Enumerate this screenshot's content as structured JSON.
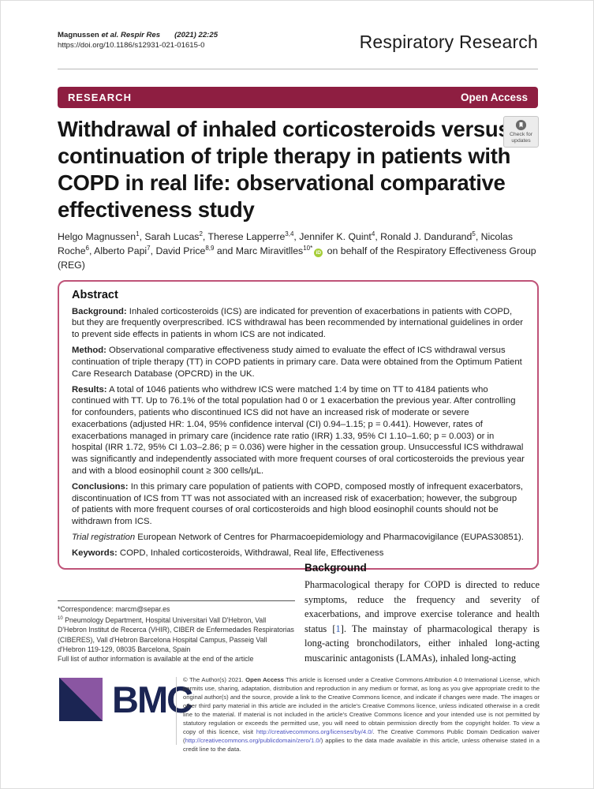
{
  "colors": {
    "banner": "#8e1e41",
    "abstract_border": "#bf5378",
    "link": "#2f5bb7",
    "footer_link": "#4a52c0",
    "orcid": "#a6ce39",
    "bmc_navy": "#1b2553",
    "bmc_purple": "#8a56a2"
  },
  "header": {
    "citation_name": "Magnussen ",
    "citation_journal": "et al. Respir Res",
    "citation_issue": "(2021) 22:25",
    "doi": "https://doi.org/10.1186/s12931-021-01615-0",
    "journal": "Respiratory Research"
  },
  "banner": {
    "section": "RESEARCH",
    "access": "Open Access"
  },
  "title": "Withdrawal of inhaled corticosteroids versus continuation of triple therapy in patients with COPD in real life: observational comparative effectiveness study",
  "update_badge": {
    "line1": "Check for",
    "line2": "updates"
  },
  "authors": {
    "segments": [
      {
        "text": "Helgo Magnussen",
        "sup": "1"
      },
      {
        "text": ", Sarah Lucas",
        "sup": "2"
      },
      {
        "text": ", Therese Lapperre",
        "sup": "3,4"
      },
      {
        "text": ", Jennifer K. Quint",
        "sup": "4"
      },
      {
        "text": ", Ronald J. Dandurand",
        "sup": "5"
      },
      {
        "text": ", Nicolas Roche",
        "sup": "6"
      },
      {
        "text": ", Alberto Papi",
        "sup": "7"
      },
      {
        "text": ", David Price",
        "sup": "8,9"
      },
      {
        "text": " and Marc Miravitlles",
        "sup": "10*",
        "orcid": true
      }
    ],
    "suffix": " on behalf of the Respiratory Effectiveness Group (REG)"
  },
  "abstract": {
    "heading": "Abstract",
    "sections": [
      {
        "label": "Background:",
        "text": "Inhaled corticosteroids (ICS) are indicated for prevention of exacerbations in patients with COPD, but they are frequently overprescribed. ICS withdrawal has been recommended by international guidelines in order to prevent side effects in patients in whom ICS are not indicated."
      },
      {
        "label": "Method:",
        "text": "Observational comparative effectiveness study aimed to evaluate the effect of ICS withdrawal versus continuation of triple therapy (TT) in COPD patients in primary care. Data were obtained from the Optimum Patient Care Research Database (OPCRD) in the UK."
      },
      {
        "label": "Results:",
        "text": "A total of 1046 patients who withdrew ICS were matched 1:4 by time on TT to 4184 patients who continued with TT. Up to 76.1% of the total population had 0 or 1 exacerbation the previous year. After controlling for confounders, patients who discontinued ICS did not have an increased risk of moderate or severe exacerbations (adjusted HR: 1.04, 95% confidence interval (CI) 0.94–1.15; p = 0.441). However, rates of exacerbations managed in primary care (incidence rate ratio (IRR) 1.33, 95% CI 1.10–1.60; p = 0.003) or in hospital (IRR 1.72, 95% CI 1.03–2.86; p = 0.036) were higher in the cessation group. Unsuccessful ICS withdrawal was significantly and independently associated with more frequent courses of oral corticosteroids the previous year and with a blood eosinophil count ≥ 300 cells/μL."
      },
      {
        "label": "Conclusions:",
        "text": "In this primary care population of patients with COPD, composed mostly of infrequent exacerbators, discontinuation of ICS from TT was not associated with an increased risk of exacerbation; however, the subgroup of patients with more frequent courses of oral corticosteroids and high blood eosinophil counts should not be withdrawn from ICS."
      },
      {
        "label": "Trial registration",
        "italic": true,
        "text": "European Network of Centres for Pharmacoepidemiology and Pharmacovigilance (EUPAS30851)."
      },
      {
        "label": "Keywords:",
        "text": "COPD, Inhaled corticosteroids, Withdrawal, Real life, Effectiveness"
      }
    ]
  },
  "footnote": {
    "correspondence_label": "*Correspondence:",
    "correspondence_email": "marcm@separ.es",
    "affiliation_sup": "10",
    "affiliation": " Pneumology Department, Hospital Universitari Vall D'Hebron, Vall D'Hebron Institut de Recerca (VHIR), CIBER de Enfermedades Respiratorias (CIBERES), Vall d'Hebron Barcelona Hospital Campus, Passeig Vall d'Hebron 119-129, 08035 Barcelona, Spain",
    "full_list_note": "Full list of author information is available at the end of the article"
  },
  "body": {
    "heading": "Background",
    "para_before_ref": "Pharmacological therapy for COPD is directed to reduce symptoms, reduce the frequency and severity of exacerbations, and improve exercise tolerance and health status [",
    "ref": "1",
    "para_after_ref": "]. The mainstay of pharmacological therapy is long-acting bronchodilators, either inhaled long-acting muscarinic antagonists (LAMAs), inhaled long-acting"
  },
  "footer": {
    "logo_text": "BMC",
    "segments": [
      {
        "text": "© The Author(s) 2021. "
      },
      {
        "text": "Open Access",
        "bold": true
      },
      {
        "text": " This article is licensed under a Creative Commons Attribution 4.0 International License, which permits use, sharing, adaptation, distribution and reproduction in any medium or format, as long as you give appropriate credit to the original author(s) and the source, provide a link to the Creative Commons licence, and indicate if changes were made. The images or other third party material in this article are included in the article's Creative Commons licence, unless indicated otherwise in a credit line to the material. If material is not included in the article's Creative Commons licence and your intended use is not permitted by statutory regulation or exceeds the permitted use, you will need to obtain permission directly from the copyright holder. To view a copy of this licence, visit "
      },
      {
        "text": "http://creativecommons.org/licenses/by/4.0/",
        "link": true
      },
      {
        "text": ". The Creative Commons Public Domain Dedication waiver ("
      },
      {
        "text": "http://creativecommons.org/publicdomain/zero/1.0/",
        "link": true
      },
      {
        "text": ") applies to the data made available in this article, unless otherwise stated in a credit line to the data."
      }
    ]
  }
}
